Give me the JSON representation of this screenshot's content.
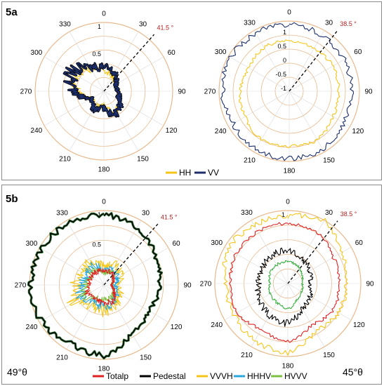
{
  "panels": {
    "a": {
      "label": "5a"
    },
    "b": {
      "label": "5b",
      "left_caption": "49°θ",
      "right_caption": "45°θ"
    }
  },
  "chart_data": [
    {
      "panel": "5a",
      "type": "polar-line",
      "angle_ticks": [
        "0",
        "30",
        "60",
        "90",
        "120",
        "150",
        "180",
        "210",
        "240",
        "270",
        "300",
        "330"
      ],
      "radial_ticks": [
        "1",
        "0.5"
      ],
      "marker_angle": 41.5,
      "marker_label": "41.5 °",
      "series": [
        {
          "name": "HH",
          "color": "#f5c518",
          "profile": [
            0.3,
            0.25,
            0.2,
            0.2,
            0.25,
            0.35,
            0.2,
            0.25,
            0.2,
            0.4,
            0.5,
            0.35
          ],
          "noise": 0.18
        },
        {
          "name": "VV",
          "color": "#1c2f6b",
          "profile": [
            0.35,
            0.3,
            0.2,
            0.2,
            0.25,
            0.4,
            0.25,
            0.3,
            0.2,
            0.45,
            0.55,
            0.4
          ],
          "noise": 0.2,
          "underlay": "#000"
        }
      ]
    },
    {
      "panel": "5a",
      "type": "polar-line",
      "angle_ticks": [
        "0",
        "30",
        "60",
        "90",
        "120",
        "150",
        "180",
        "210",
        "240",
        "270",
        "300",
        "330"
      ],
      "radial_ticks": [
        "1",
        "0.5",
        "0",
        "-0.5",
        "-1"
      ],
      "marker_angle": 38.5,
      "marker_label": "38.5 °",
      "series": [
        {
          "name": "HH",
          "color": "#f5c518",
          "profile": [
            0.72,
            0.7,
            0.72,
            0.7,
            0.72,
            0.8,
            0.78,
            0.8,
            0.72,
            0.7,
            0.66,
            0.72
          ],
          "noise": 0.03
        },
        {
          "name": "VV",
          "color": "#1c2f6b",
          "profile": [
            0.95,
            0.92,
            0.9,
            0.88,
            0.9,
            0.95,
            0.96,
            0.95,
            0.92,
            0.95,
            0.96,
            0.95
          ],
          "noise": 0.04
        }
      ]
    },
    {
      "panel": "5b",
      "type": "polar-line",
      "angle_ticks": [
        "0",
        "30",
        "60",
        "90",
        "120",
        "150",
        "180",
        "210",
        "240",
        "270",
        "300",
        "330"
      ],
      "radial_ticks": [
        "1",
        "0.5"
      ],
      "marker_angle": 41.5,
      "marker_label": "41.5 °",
      "series": [
        {
          "name": "Pedestal",
          "color": "#000",
          "underlay": "#2e7d32",
          "profile": [
            0.95,
            0.88,
            0.8,
            0.75,
            0.7,
            0.75,
            0.95,
            0.9,
            0.97,
            0.98,
            0.97,
            0.95
          ],
          "noise": 0.04
        },
        {
          "name": "VVVH",
          "color": "#f5c518",
          "profile": [
            0.25,
            0.3,
            0.25,
            0.2,
            0.25,
            0.3,
            0.35,
            0.3,
            0.45,
            0.4,
            0.3,
            0.35
          ],
          "noise": 0.25
        },
        {
          "name": "HHHV",
          "color": "#29a8e0",
          "profile": [
            0.2,
            0.25,
            0.2,
            0.15,
            0.2,
            0.25,
            0.3,
            0.25,
            0.35,
            0.3,
            0.25,
            0.3
          ],
          "noise": 0.22
        },
        {
          "name": "HVVV",
          "color": "#7cc142",
          "profile": [
            0.15,
            0.2,
            0.15,
            0.1,
            0.15,
            0.2,
            0.2,
            0.2,
            0.3,
            0.25,
            0.2,
            0.25
          ],
          "noise": 0.2
        },
        {
          "name": "Totalp",
          "color": "#e02020",
          "profile": [
            0.2,
            0.2,
            0.15,
            0.1,
            0.15,
            0.25,
            0.25,
            0.2,
            0.25,
            0.2,
            0.2,
            0.2
          ],
          "noise": 0.18
        }
      ]
    },
    {
      "panel": "5b",
      "type": "polar-line",
      "angle_ticks": [
        "0",
        "30",
        "60",
        "90",
        "120",
        "150",
        "180",
        "210",
        "240",
        "270",
        "300",
        "330"
      ],
      "radial_ticks": [
        "1"
      ],
      "marker_angle": 38.5,
      "marker_label": "38.5 °",
      "series": [
        {
          "name": "VVVH",
          "color": "#f5c518",
          "profile": [
            0.92,
            1.0,
            0.85,
            0.8,
            0.8,
            0.75,
            0.95,
            0.9,
            0.85,
            0.85,
            0.95,
            0.92
          ],
          "noise": 0.04
        },
        {
          "name": "Totalp",
          "color": "#e02020",
          "profile": [
            0.82,
            0.8,
            0.72,
            0.7,
            0.72,
            0.65,
            0.8,
            0.72,
            0.8,
            0.78,
            0.82,
            0.82
          ],
          "noise": 0.03
        },
        {
          "name": "Pedestal",
          "color": "#000",
          "profile": [
            0.45,
            0.4,
            0.35,
            0.3,
            0.35,
            0.4,
            0.55,
            0.5,
            0.45,
            0.4,
            0.4,
            0.45
          ],
          "noise": 0.1
        },
        {
          "name": "HVVV",
          "color": "#3cb043",
          "profile": [
            0.3,
            0.28,
            0.22,
            0.2,
            0.22,
            0.25,
            0.35,
            0.3,
            0.28,
            0.25,
            0.28,
            0.3
          ],
          "noise": 0.06
        }
      ]
    }
  ],
  "legends": {
    "a": [
      {
        "name": "HH",
        "color": "#f5c518"
      },
      {
        "name": "VV",
        "color": "#1c2f6b"
      }
    ],
    "b": [
      {
        "name": "Totalp",
        "color": "#e02020"
      },
      {
        "name": "Pedestal",
        "color": "#000000"
      },
      {
        "name": "VVVH",
        "color": "#f5c518"
      },
      {
        "name": "HHHV",
        "color": "#29a8e0"
      },
      {
        "name": "HVVV",
        "color": "#7cc142"
      }
    ]
  },
  "colors": {
    "ring": "#e8b98c",
    "grid": "#d9d9d9",
    "frame": "#8a8a8a",
    "marker": "#000"
  }
}
